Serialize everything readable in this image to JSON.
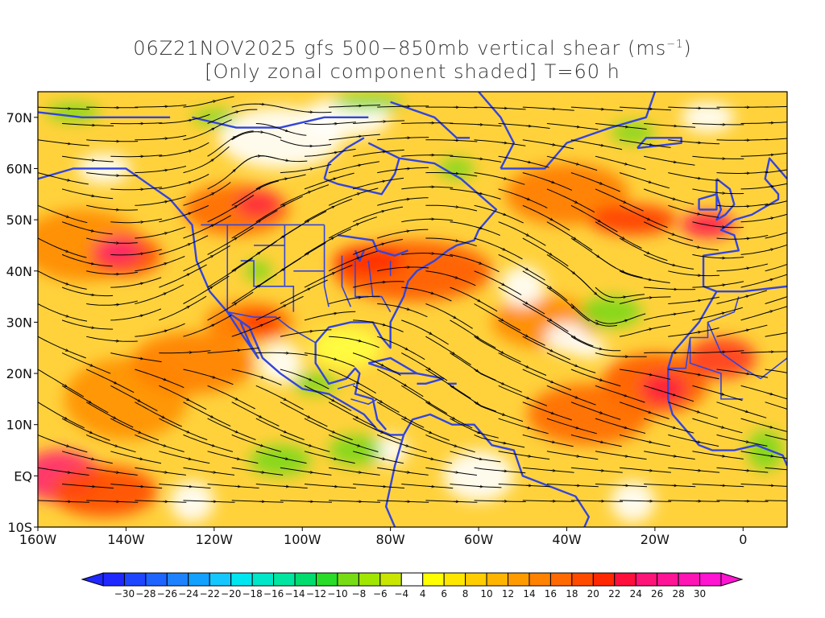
{
  "title": {
    "line1_prefix": "06Z21NOV2025 gfs 500−850mb vertical shear (ms",
    "line1_exp": "−1",
    "line1_suffix": ")",
    "line2": "[Only zonal component shaded] T=60 h"
  },
  "map": {
    "lon_range": [
      -160,
      10
    ],
    "lat_range": [
      -10,
      75
    ],
    "lat_ticks": [
      {
        "lat": 70,
        "label": "70N"
      },
      {
        "lat": 60,
        "label": "60N"
      },
      {
        "lat": 50,
        "label": "50N"
      },
      {
        "lat": 40,
        "label": "40N"
      },
      {
        "lat": 30,
        "label": "30N"
      },
      {
        "lat": 20,
        "label": "20N"
      },
      {
        "lat": 10,
        "label": "10N"
      },
      {
        "lat": 0,
        "label": "EQ"
      },
      {
        "lat": -10,
        "label": "10S"
      }
    ],
    "lon_ticks": [
      {
        "lon": -160,
        "label": "160W"
      },
      {
        "lon": -140,
        "label": "140W"
      },
      {
        "lon": -120,
        "label": "120W"
      },
      {
        "lon": -100,
        "label": "100W"
      },
      {
        "lon": -80,
        "label": "80W"
      },
      {
        "lon": -60,
        "label": "60W"
      },
      {
        "lon": -40,
        "label": "40W"
      },
      {
        "lon": -20,
        "label": "20W"
      },
      {
        "lon": 0,
        "label": "0"
      }
    ],
    "coastline_color": "#3344dd",
    "streamline_color": "#000000"
  },
  "colorbar": {
    "labels": [
      "−30",
      "−28",
      "−26",
      "−24",
      "−22",
      "−20",
      "−18",
      "−16",
      "−14",
      "−12",
      "−10",
      "−8",
      "−6",
      "−4",
      "4",
      "6",
      "8",
      "10",
      "12",
      "14",
      "16",
      "18",
      "20",
      "22",
      "24",
      "26",
      "28",
      "30"
    ],
    "colors": [
      "#1e28ff",
      "#1e46ff",
      "#1e64ff",
      "#1e82ff",
      "#14a0ff",
      "#14c8ff",
      "#00e6f0",
      "#00e6c8",
      "#00e6a0",
      "#00dc6e",
      "#28dc28",
      "#78dc14",
      "#a0e600",
      "#c8e600",
      "#ffffff",
      "#ffff00",
      "#ffe600",
      "#ffcd00",
      "#ffb400",
      "#ff9b00",
      "#ff8200",
      "#ff6900",
      "#ff4b00",
      "#ff2800",
      "#ff0f3c",
      "#ff1478",
      "#ff1496",
      "#ff14b4",
      "#ff14d2"
    ]
  }
}
